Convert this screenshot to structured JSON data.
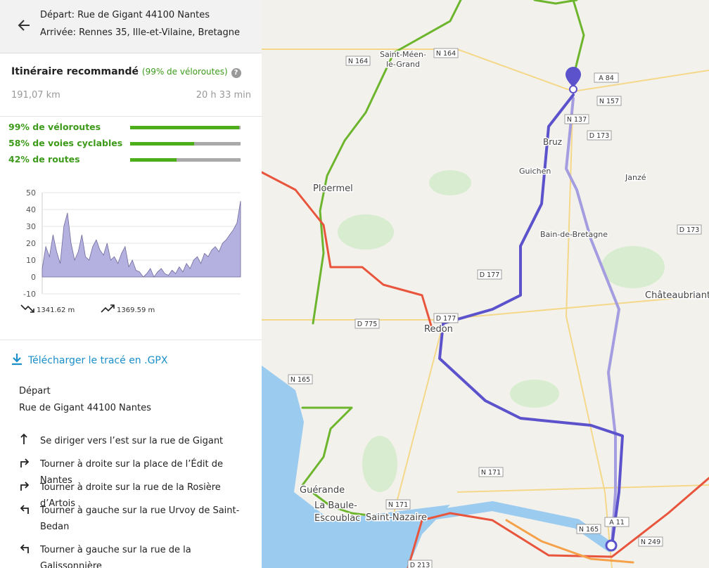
{
  "header": {
    "departure": "Départ: Rue de Gigant 44100 Nantes",
    "arrival": "Arrivée: Rennes 35, Ille-et-Vilaine, Bretagne"
  },
  "itinerary": {
    "title": "Itinéraire recommandé",
    "note": "(99% de véloroutes)",
    "distance": "191,07 km",
    "duration": "20 h 33 min"
  },
  "shares": [
    {
      "label": "99% de véloroutes",
      "value": 99
    },
    {
      "label": "58% de voies cyclables",
      "value": 58
    },
    {
      "label": "42% de routes",
      "value": 42
    }
  ],
  "elevation_chart": {
    "type": "area",
    "ylim": [
      -10,
      50
    ],
    "yticks": [
      50,
      40,
      30,
      20,
      10,
      0,
      -10
    ],
    "color": "#b4b0e0",
    "values": [
      5,
      18,
      12,
      25,
      15,
      8,
      30,
      38,
      20,
      10,
      15,
      25,
      12,
      10,
      18,
      22,
      16,
      13,
      20,
      10,
      12,
      8,
      14,
      18,
      6,
      10,
      4,
      3,
      0,
      2,
      5,
      0,
      3,
      5,
      2,
      1,
      4,
      2,
      6,
      3,
      8,
      5,
      10,
      12,
      8,
      14,
      12,
      16,
      18,
      15,
      20,
      22,
      25,
      28,
      32,
      45
    ],
    "descent": "1341.62 m",
    "ascent": "1369.59 m"
  },
  "download": "Télécharger le tracé en .GPX",
  "start": {
    "label": "Départ",
    "address": "Rue de Gigant 44100 Nantes"
  },
  "steps": [
    "Se diriger vers l’est sur la rue de Gigant",
    "Tourner à droite sur la place de l’Édit de Nantes",
    "Tourner à droite sur la rue de la Rosière d’Artois",
    "Tourner à gauche sur la rue Urvoy de Saint-|Bedan",
    "Tourner à gauche sur la rue de la Galissonnière"
  ],
  "map": {
    "places": [
      "Saint-Méen-",
      "le-Grand",
      "Ploermel",
      "Bruz",
      "Guichen",
      "Janzé",
      "Bain-de-Bretagne",
      "Châteaubriant",
      "Redon",
      "Guérande",
      "La Baule-",
      "Escoublac",
      "Saint-Nazaire"
    ],
    "roads": [
      "N 164",
      "N 164",
      "A 84",
      "N 157",
      "N 137",
      "D 173",
      "D 173",
      "D 177",
      "D 177",
      "D 775",
      "N 165",
      "N 171",
      "N 171",
      "N 165",
      "A 11",
      "N 249",
      "D 213"
    ]
  }
}
